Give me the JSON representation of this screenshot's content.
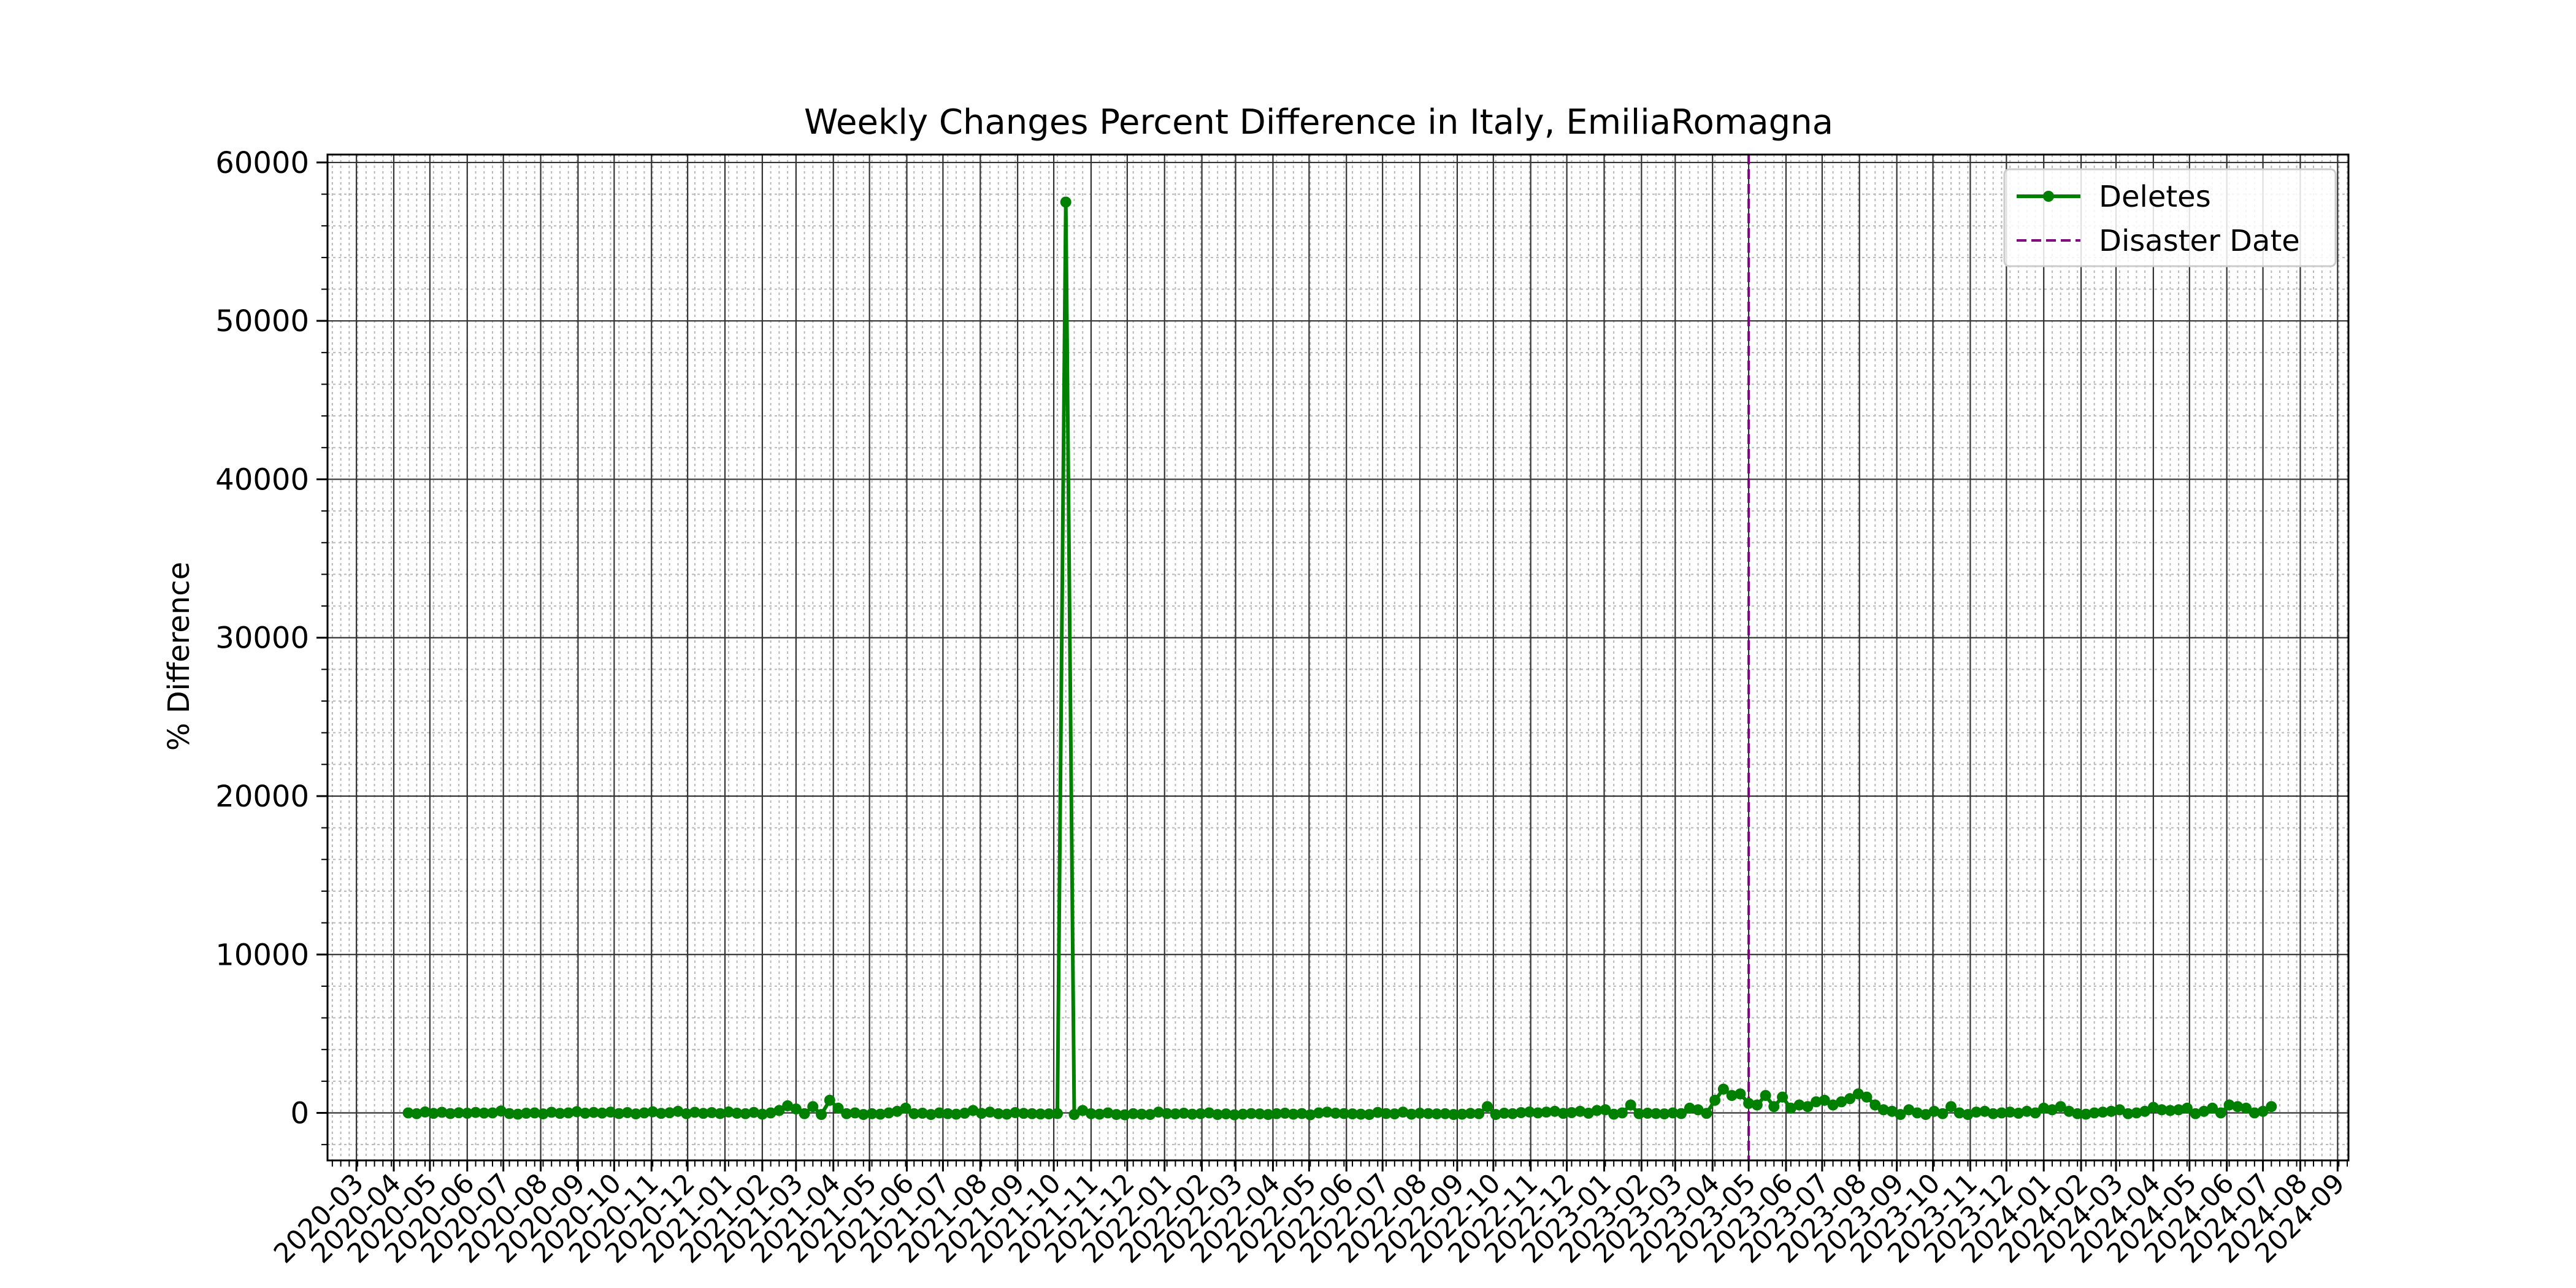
{
  "chart_data": {
    "type": "line",
    "title": "Weekly Changes Percent Difference in Italy, EmiliaRomagna",
    "xlabel": "",
    "ylabel": "% Difference",
    "xlim": [
      "2020-02-06",
      "2024-09-10"
    ],
    "ylim": [
      -3000,
      60500
    ],
    "y_ticks": [
      0,
      10000,
      20000,
      30000,
      40000,
      50000,
      60000
    ],
    "x_tick_labels": [
      "2020-03",
      "2020-04",
      "2020-05",
      "2020-06",
      "2020-07",
      "2020-08",
      "2020-09",
      "2020-10",
      "2020-11",
      "2020-12",
      "2021-01",
      "2021-02",
      "2021-03",
      "2021-04",
      "2021-05",
      "2021-06",
      "2021-07",
      "2021-08",
      "2021-09",
      "2021-10",
      "2021-11",
      "2021-12",
      "2022-01",
      "2022-02",
      "2022-03",
      "2022-04",
      "2022-05",
      "2022-06",
      "2022-07",
      "2022-08",
      "2022-09",
      "2022-10",
      "2022-11",
      "2022-12",
      "2023-01",
      "2023-02",
      "2023-03",
      "2023-04",
      "2023-05",
      "2023-06",
      "2023-07",
      "2023-08",
      "2023-09",
      "2023-10",
      "2023-11",
      "2023-12",
      "2024-01",
      "2024-02",
      "2024-03",
      "2024-04",
      "2024-05",
      "2024-06",
      "2024-07",
      "2024-08",
      "2024-09"
    ],
    "grid": true,
    "legend_position": "top-right",
    "series": [
      {
        "name": "Deletes",
        "color": "#008000",
        "marker": "circle",
        "start_date": "2020-04-13",
        "interval_days": 7,
        "values": [
          0,
          -50,
          60,
          -30,
          40,
          -40,
          10,
          -20,
          30,
          -10,
          0,
          120,
          -40,
          -80,
          -20,
          0,
          -60,
          40,
          -30,
          0,
          80,
          -20,
          30,
          -10,
          50,
          -40,
          20,
          -60,
          0,
          70,
          -30,
          10,
          100,
          -50,
          40,
          -30,
          20,
          -40,
          60,
          -20,
          -50,
          30,
          -80,
          0,
          150,
          450,
          250,
          -50,
          400,
          -100,
          800,
          300,
          -50,
          0,
          -100,
          -50,
          -80,
          0,
          100,
          300,
          -50,
          -20,
          -100,
          0,
          -50,
          -80,
          -20,
          150,
          -30,
          50,
          -50,
          -80,
          20,
          -30,
          -50,
          -70,
          -60,
          -40,
          57500,
          -100,
          150,
          -50,
          -80,
          0,
          -100,
          -120,
          -50,
          -80,
          -100,
          50,
          -40,
          -60,
          -20,
          -80,
          -50,
          0,
          -100,
          -60,
          -120,
          -80,
          -40,
          -60,
          -100,
          -50,
          -20,
          -80,
          -40,
          -120,
          0,
          50,
          -20,
          -40,
          -60,
          -80,
          -100,
          30,
          -40,
          -60,
          50,
          -80,
          -20,
          -40,
          -60,
          -50,
          -100,
          -80,
          -30,
          -50,
          400,
          -100,
          -20,
          -50,
          20,
          60,
          0,
          50,
          100,
          -30,
          20,
          100,
          -20,
          150,
          200,
          -80,
          0,
          500,
          -50,
          -20,
          -40,
          -60,
          0,
          -40,
          300,
          200,
          -30,
          800,
          1500,
          1100,
          1200,
          600,
          500,
          1100,
          400,
          1000,
          300,
          500,
          400,
          700,
          800,
          500,
          700,
          900,
          1200,
          1000,
          500,
          200,
          100,
          -100,
          200,
          0,
          -100,
          100,
          -50,
          400,
          0,
          -100,
          50,
          100,
          -50,
          0,
          50,
          -20,
          100,
          0,
          300,
          200,
          400,
          100,
          -50,
          -80,
          0,
          50,
          100,
          200,
          -50,
          0,
          100,
          350,
          200,
          150,
          200,
          300,
          -50,
          100,
          300,
          0,
          500,
          400,
          300,
          0,
          100,
          400
        ]
      }
    ],
    "annotations": [
      {
        "name": "Disaster Date",
        "type": "vline",
        "x": "2023-05-01",
        "color": "#800080",
        "style": "dashed"
      }
    ]
  }
}
